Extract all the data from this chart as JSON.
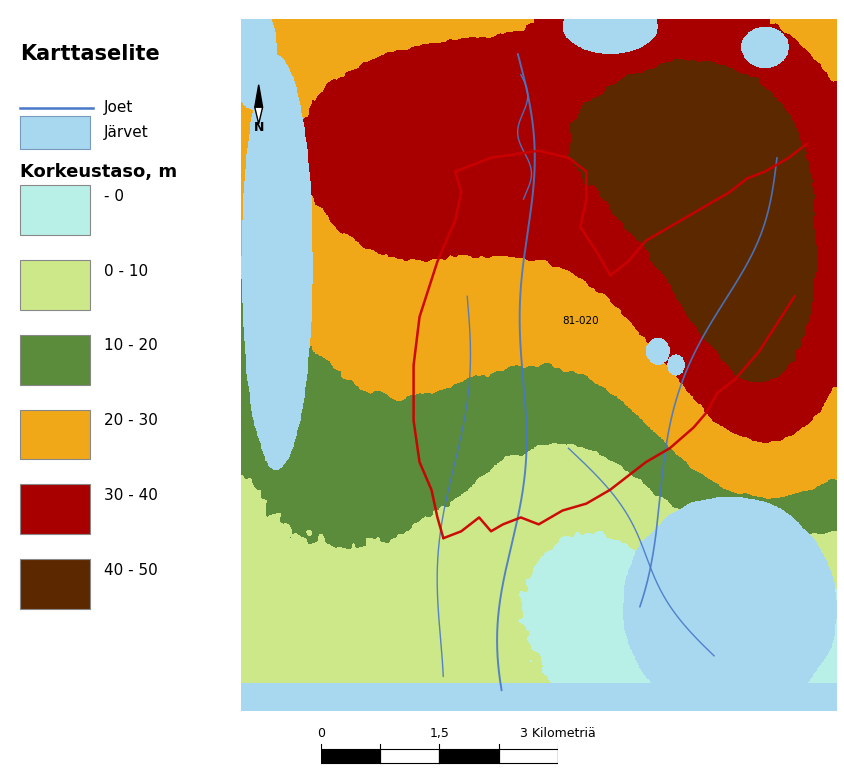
{
  "legend_title": "Karttaselite",
  "legend_subtitle": "Korkeustaso, m",
  "legend_items": [
    {
      "label": "- 0",
      "color": "#b8f0e8"
    },
    {
      "label": "0 - 10",
      "color": "#cce888"
    },
    {
      "label": "10 - 20",
      "color": "#5a8c3c"
    },
    {
      "label": "20 - 30",
      "color": "#f0a818"
    },
    {
      "label": "30 - 40",
      "color": "#a80000"
    },
    {
      "label": "40 - 50",
      "color": "#5c2800"
    }
  ],
  "joet_color": "#4878c8",
  "jarvet_color": "#a8d8f0",
  "river_color": "#4878c8",
  "boundary_color": "#cc0000",
  "seed": 12345,
  "map_border_color": "#606060"
}
